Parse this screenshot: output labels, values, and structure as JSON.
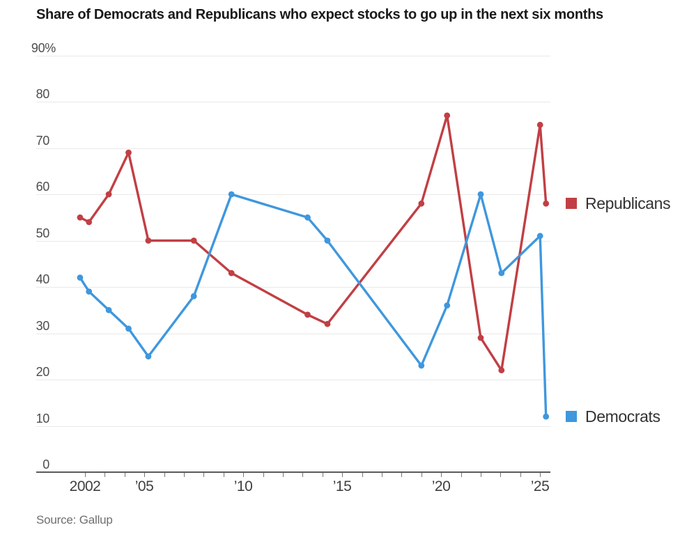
{
  "title": "Share of Democrats and Republicans who expect stocks to go up in the next six months",
  "source": "Source: Gallup",
  "legend": {
    "republicans": "Republicans",
    "democrats": "Democrats"
  },
  "colors": {
    "republicans": "#c13f44",
    "democrats": "#3f97dd",
    "gridline": "#e9e9e9",
    "axis": "#58595b",
    "tick": "#757575"
  },
  "chart_data": {
    "type": "line",
    "title": "Share of Democrats and Republicans who expect stocks to go up in the next six months",
    "source": "Source: Gallup",
    "x": [
      2001.75,
      2002.2,
      2003.2,
      2004.2,
      2005.2,
      2007.5,
      2009.4,
      2013.25,
      2014.25,
      2019,
      2020.3,
      2022,
      2023.05,
      2025,
      2025.3
    ],
    "series": [
      {
        "name": "Republicans",
        "color": "#c13f44",
        "values": [
          55,
          54,
          60,
          69,
          50,
          50,
          43,
          34,
          32,
          58,
          77,
          29,
          22,
          75,
          58
        ]
      },
      {
        "name": "Democrats",
        "color": "#3f97dd",
        "values": [
          42,
          39,
          35,
          31,
          25,
          38,
          60,
          55,
          50,
          23,
          36,
          60,
          43,
          51,
          12
        ]
      }
    ],
    "xlabel": "",
    "ylabel": "",
    "ylim": [
      0,
      90
    ],
    "xlim": [
      1999.5,
      2025.6
    ],
    "grid": true,
    "legend_position": "right",
    "y_ticks": [
      {
        "value": 90,
        "label": "90%"
      },
      {
        "value": 80,
        "label": "80"
      },
      {
        "value": 70,
        "label": "70"
      },
      {
        "value": 60,
        "label": "60"
      },
      {
        "value": 50,
        "label": "50"
      },
      {
        "value": 40,
        "label": "40"
      },
      {
        "value": 30,
        "label": "30"
      },
      {
        "value": 20,
        "label": "20"
      },
      {
        "value": 10,
        "label": "10"
      },
      {
        "value": 0,
        "label": "0"
      }
    ],
    "x_ticks_labeled": [
      {
        "year": 2002,
        "label": "2002"
      },
      {
        "year": 2005,
        "label": "’05"
      },
      {
        "year": 2010,
        "label": "’10"
      },
      {
        "year": 2015,
        "label": "’15"
      },
      {
        "year": 2020,
        "label": "’20"
      },
      {
        "year": 2025,
        "label": "’25"
      }
    ],
    "x_minor_ticks": {
      "start_year": 2002,
      "end_year": 2025,
      "step": 1
    }
  }
}
